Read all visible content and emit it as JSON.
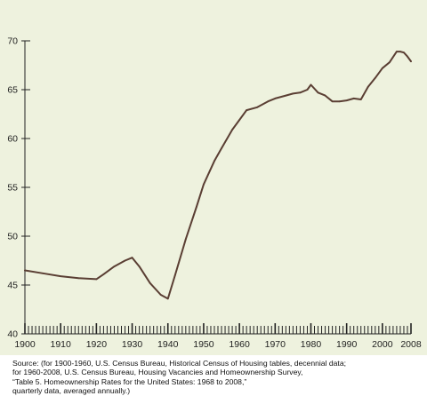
{
  "chart_data": {
    "type": "line",
    "title": "",
    "xlabel": "",
    "ylabel": "",
    "xlim": [
      1900,
      2008
    ],
    "ylim": [
      40,
      70
    ],
    "x_ticks": [
      "1900",
      "1910",
      "1920",
      "1930",
      "1940",
      "1950",
      "1960",
      "1970",
      "1980",
      "1990",
      "2000",
      "2008"
    ],
    "y_ticks": [
      "70",
      "65",
      "60",
      "55",
      "50",
      "45",
      "40"
    ],
    "grid": false,
    "colors": {
      "line": "#5a3e33",
      "background": "#eef2de",
      "axis": "#222222"
    },
    "series": [
      {
        "name": "",
        "x": [
          1900,
          1905,
          1910,
          1915,
          1920,
          1922,
          1925,
          1928,
          1930,
          1932,
          1935,
          1938,
          1940,
          1942,
          1945,
          1948,
          1950,
          1953,
          1955,
          1958,
          1960,
          1962,
          1965,
          1968,
          1970,
          1973,
          1975,
          1977,
          1979,
          1980,
          1982,
          1984,
          1986,
          1988,
          1990,
          1992,
          1994,
          1996,
          1998,
          2000,
          2002,
          2004,
          2005,
          2006,
          2007,
          2008
        ],
        "values": [
          46.5,
          46.2,
          45.9,
          45.7,
          45.6,
          46.1,
          46.9,
          47.5,
          47.8,
          46.9,
          45.2,
          44.0,
          43.6,
          46.0,
          49.7,
          53.0,
          55.3,
          57.7,
          59.0,
          60.9,
          61.9,
          62.9,
          63.2,
          63.8,
          64.1,
          64.4,
          64.6,
          64.7,
          65.0,
          65.5,
          64.7,
          64.4,
          63.8,
          63.8,
          63.9,
          64.1,
          64.0,
          65.3,
          66.2,
          67.2,
          67.8,
          68.9,
          68.9,
          68.8,
          68.4,
          67.9
        ]
      }
    ]
  },
  "source_lines": [
    "Source: (for 1900-1960, U.S. Census Bureau, Historical Census of Housing tables, decennial data;",
    "for 1960-2008, U.S. Census Bureau, Housing Vacancies and Homeownership Survey,",
    "“Table 5. Homeownership Rates for the United States: 1968 to 2008,”",
    " quarterly data, averaged annually.)"
  ]
}
